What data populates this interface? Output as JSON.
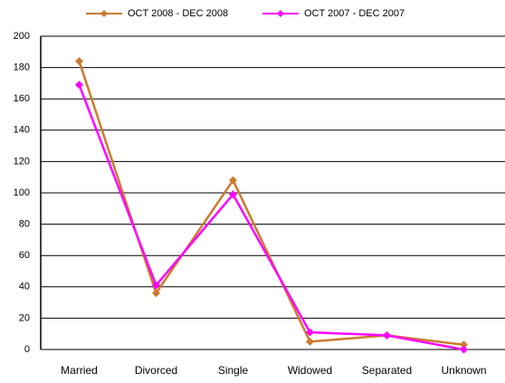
{
  "chart_data": {
    "type": "line",
    "categories": [
      "Married",
      "Divorced",
      "Single",
      "Widowed",
      "Separated",
      "Unknown"
    ],
    "series": [
      {
        "name": "OCT 2008 - DEC 2008",
        "color": "#cc7a2e",
        "values": [
          184,
          36,
          108,
          5,
          9,
          3
        ]
      },
      {
        "name": "OCT 2007 - DEC 2007",
        "color": "#ff00ff",
        "values": [
          169,
          41,
          99,
          11,
          9,
          0
        ]
      }
    ],
    "ylim": [
      0,
      200
    ],
    "yticks": [
      0,
      20,
      40,
      60,
      80,
      100,
      120,
      140,
      160,
      180,
      200
    ],
    "grid": true,
    "legend": "top"
  }
}
